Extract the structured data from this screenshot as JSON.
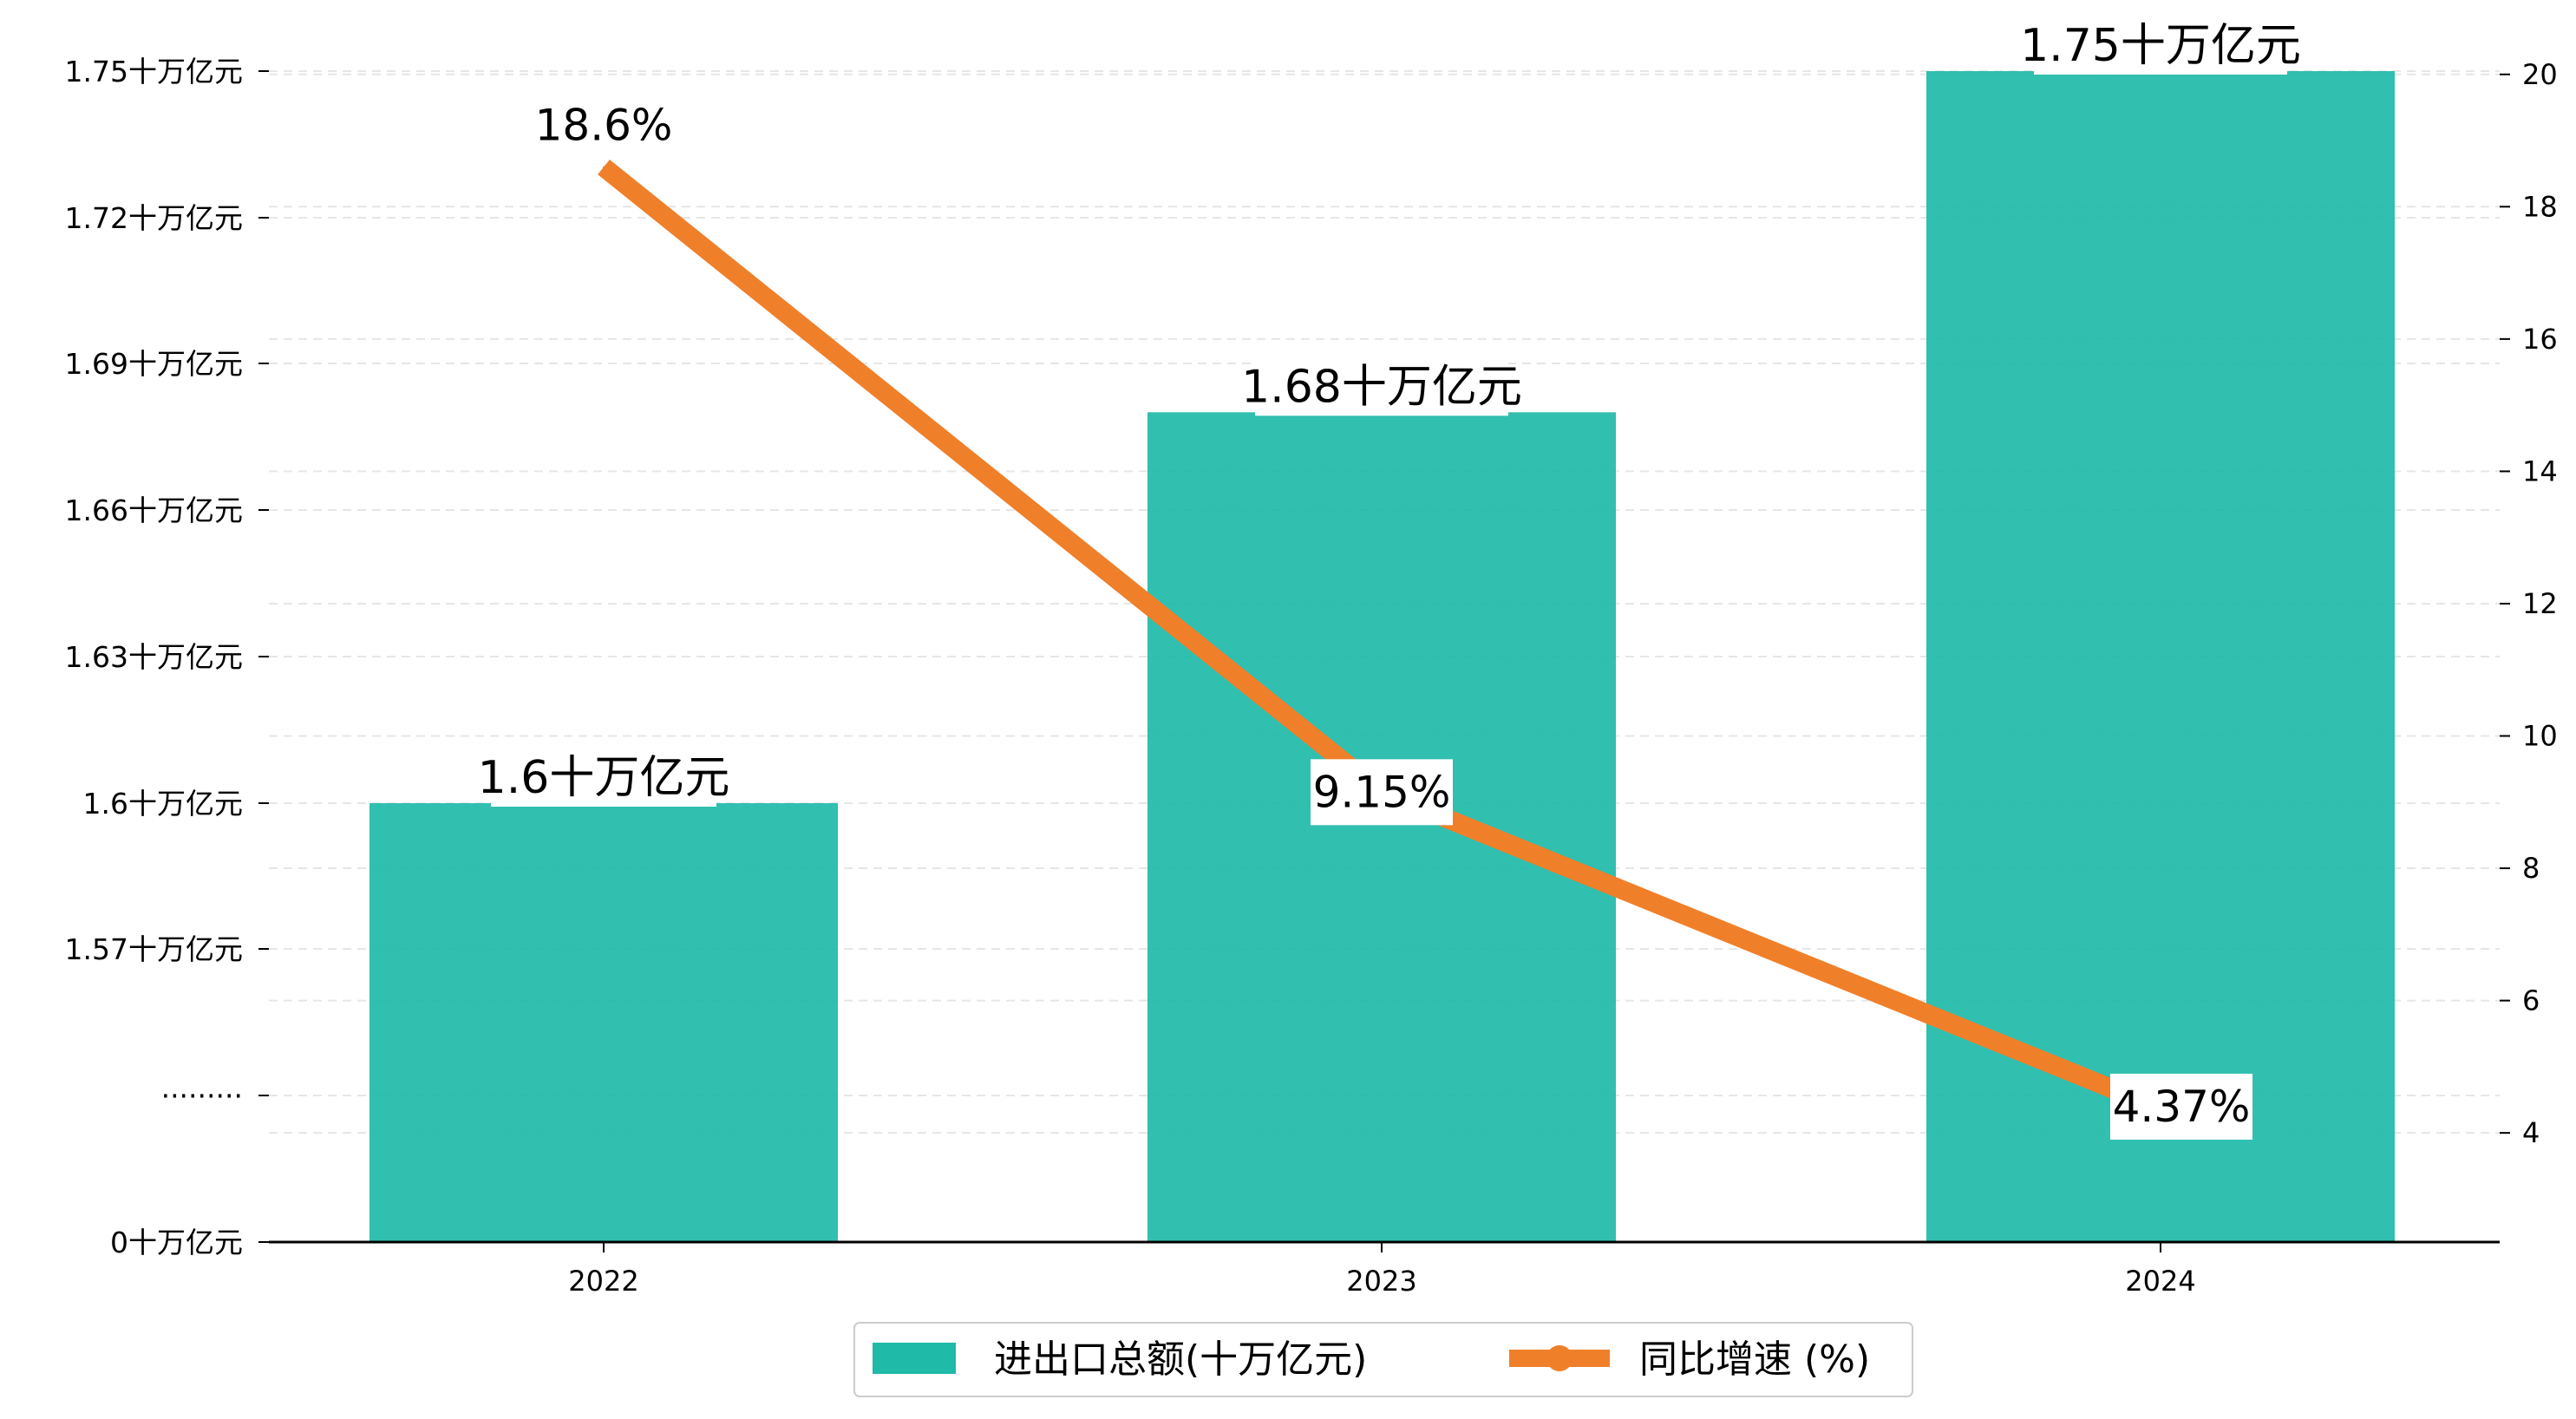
{
  "colors": {
    "bar": "#1fbaa8",
    "line": "#f07f2a",
    "grid": "#e6e6e6",
    "axis": "#000000"
  },
  "chart_data": {
    "type": "bar",
    "categories": [
      "2022",
      "2023",
      "2024"
    ],
    "series": [
      {
        "name": "进出口总额(十万亿元)",
        "type": "bar",
        "axis": "left",
        "values": [
          1.6,
          1.68,
          1.75
        ],
        "data_labels": [
          "1.6十万亿元",
          "1.68十万亿元",
          "1.75十万亿元"
        ]
      },
      {
        "name": "同比增速 (%)",
        "type": "line",
        "axis": "right",
        "values": [
          18.6,
          9.15,
          4.37
        ],
        "data_labels": [
          "18.6%",
          "9.15%",
          "4.37%"
        ]
      }
    ],
    "left_axis": {
      "tick_values": [
        0,
        1.54,
        1.57,
        1.6,
        1.63,
        1.66,
        1.69,
        1.72,
        1.75
      ],
      "tick_labels": [
        "0十万亿元",
        "·········",
        "1.57十万亿元",
        "1.6十万亿元",
        "1.63十万亿元",
        "1.66十万亿元",
        "1.69十万亿元",
        "1.72十万亿元",
        "1.75十万亿元"
      ],
      "axis_break": true
    },
    "right_axis": {
      "ylim": [
        2.35,
        20.6
      ],
      "ticks": [
        4,
        6,
        8,
        10,
        12,
        14,
        16,
        18,
        20
      ]
    },
    "grid": true,
    "legend_position": "bottom-center"
  }
}
